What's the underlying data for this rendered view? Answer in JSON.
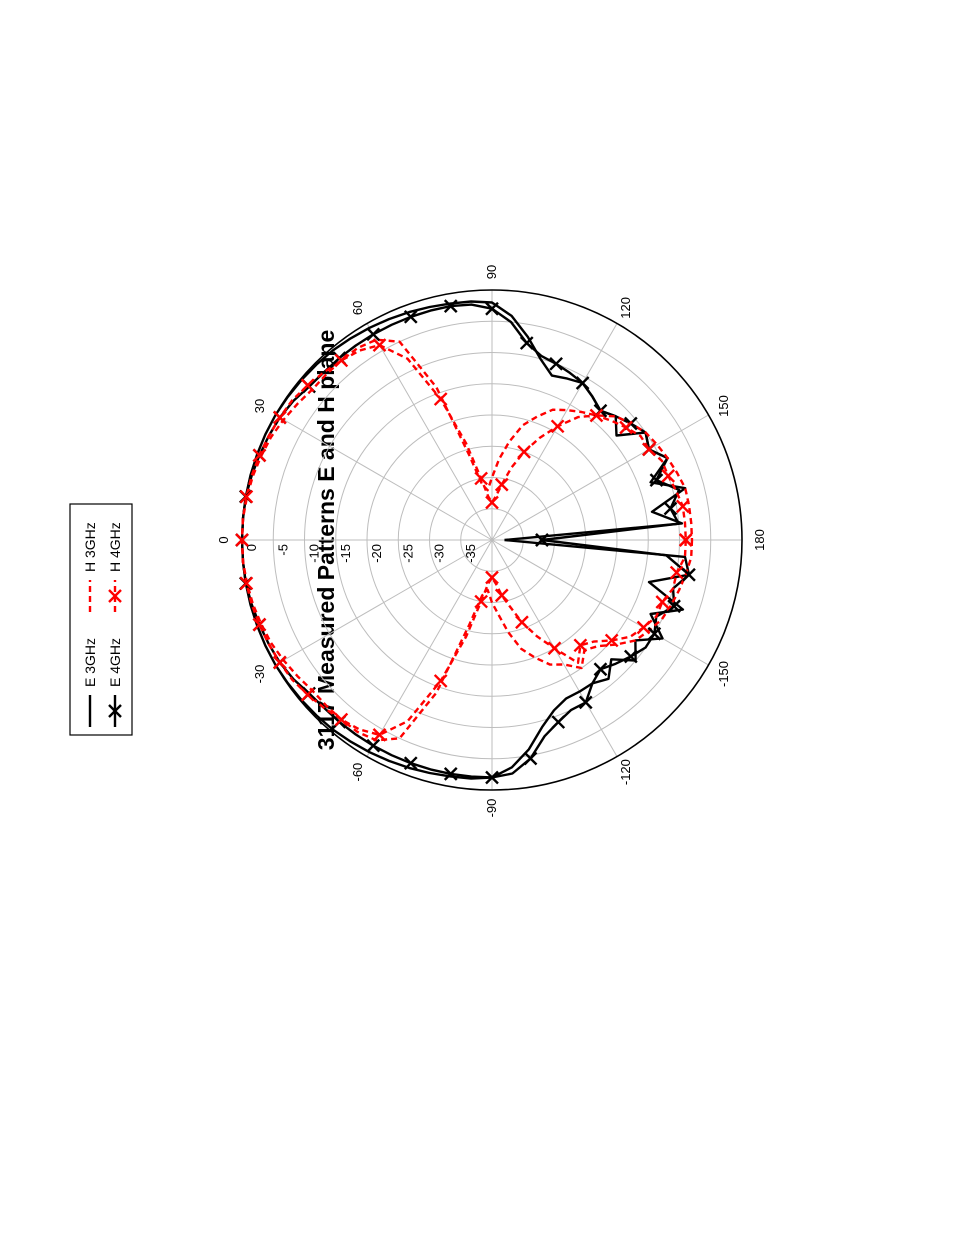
{
  "chart_data": {
    "type": "polar",
    "title": "3117 Measured Patterns E and H plane",
    "radial_unit": "dB",
    "radial_range": [
      -40,
      0
    ],
    "radial_ticks": [
      "0",
      "-5",
      "-10",
      "-15",
      "-20",
      "-25",
      "-30",
      "-35"
    ],
    "radial_tick_values": [
      0,
      -5,
      -10,
      -15,
      -20,
      -25,
      -30,
      -35
    ],
    "angle_ticks": [
      "-90",
      "-60",
      "-30",
      "0",
      "30",
      "60",
      "90",
      "120",
      "150",
      "180",
      "-150",
      "-120"
    ],
    "angle_tick_values": [
      -90,
      -60,
      -30,
      0,
      30,
      60,
      90,
      120,
      150,
      180,
      -150,
      -120
    ],
    "grid": true,
    "legend": "top-right",
    "colors": {
      "black": "#000000",
      "red": "#ff0000",
      "grid": "#bdbdbd"
    },
    "series": [
      {
        "name": "E 3GHz",
        "color": "#000000",
        "style": "solid",
        "marker": "none",
        "angles": [
          -180,
          -175,
          -170,
          -165,
          -160,
          -155,
          -150,
          -145,
          -140,
          -135,
          -130,
          -125,
          -120,
          -115,
          -110,
          -105,
          -100,
          -95,
          -90,
          -85,
          -80,
          -75,
          -70,
          -65,
          -60,
          -55,
          -50,
          -45,
          -40,
          -35,
          -30,
          -25,
          -20,
          -15,
          -10,
          -5,
          0,
          5,
          10,
          15,
          20,
          25,
          30,
          35,
          40,
          45,
          50,
          55,
          60,
          65,
          70,
          75,
          80,
          85,
          90,
          95,
          100,
          105,
          110,
          115,
          120,
          125,
          130,
          135,
          140,
          145,
          150,
          155,
          160,
          165,
          170,
          175,
          180
        ],
        "values": [
          -38,
          -9,
          -8,
          -14,
          -7.5,
          -12,
          -8.5,
          -12,
          -10,
          -13,
          -11,
          -12,
          -12,
          -12,
          -11,
          -9,
          -6,
          -3.5,
          -2,
          -1.7,
          -1.6,
          -1.4,
          -1.2,
          -1,
          -0.8,
          -0.6,
          -0.4,
          -0.3,
          -0.2,
          -0.1,
          0,
          0,
          0,
          0,
          0,
          0,
          0,
          0,
          0,
          0,
          0,
          0,
          0,
          -0.1,
          -0.2,
          -0.3,
          -0.4,
          -0.6,
          -0.8,
          -1,
          -1.2,
          -1.4,
          -1.6,
          -1.7,
          -2,
          -4,
          -7,
          -10,
          -12,
          -11.5,
          -11,
          -12,
          -13,
          -12,
          -14,
          -10,
          -11,
          -9,
          -13,
          -8,
          -14,
          -9.5,
          -38
        ]
      },
      {
        "name": "E 4GHz",
        "color": "#000000",
        "style": "solid",
        "marker": "x",
        "angles": [
          -180,
          -175,
          -170,
          -165,
          -160,
          -155,
          -150,
          -145,
          -140,
          -135,
          -130,
          -125,
          -120,
          -115,
          -110,
          -105,
          -100,
          -95,
          -90,
          -85,
          -80,
          -75,
          -70,
          -65,
          -60,
          -55,
          -50,
          -45,
          -40,
          -35,
          -30,
          -25,
          -20,
          -15,
          -10,
          -5,
          0,
          5,
          10,
          15,
          20,
          25,
          30,
          35,
          40,
          45,
          50,
          55,
          60,
          65,
          70,
          75,
          80,
          85,
          90,
          95,
          100,
          105,
          110,
          115,
          120,
          125,
          130,
          135,
          140,
          145,
          150,
          155,
          160,
          165,
          170,
          175,
          180
        ],
        "values": [
          -32,
          -12,
          -8,
          -10,
          -9,
          -11,
          -10,
          -10,
          -11,
          -12,
          -13,
          -12,
          -10,
          -10,
          -9,
          -7.5,
          -4.5,
          -2.5,
          -2,
          -2,
          -2,
          -2,
          -2,
          -2,
          -2,
          -2,
          -2,
          -2,
          -1.8,
          -1.2,
          -0.8,
          -0.6,
          -0.4,
          -0.2,
          0,
          0,
          0,
          0,
          0,
          -0.2,
          -0.4,
          -0.6,
          -0.8,
          -1.2,
          -1.8,
          -2,
          -2,
          -2,
          -2,
          -2,
          -2,
          -2,
          -2,
          -2.2,
          -3,
          -5,
          -8,
          -9.5,
          -10,
          -10.5,
          -11,
          -12,
          -13,
          -12,
          -11,
          -10,
          -11,
          -9,
          -12,
          -9,
          -11,
          -10,
          -32
        ]
      },
      {
        "name": "H 3GHz",
        "color": "#ff0000",
        "style": "dashed",
        "marker": "none",
        "angles": [
          -180,
          -175,
          -170,
          -165,
          -160,
          -155,
          -150,
          -145,
          -140,
          -135,
          -130,
          -125,
          -120,
          -115,
          -110,
          -105,
          -100,
          -95,
          -90,
          -85,
          -80,
          -75,
          -70,
          -65,
          -60,
          -55,
          -50,
          -45,
          -40,
          -35,
          -30,
          -25,
          -20,
          -15,
          -10,
          -5,
          0,
          5,
          10,
          15,
          20,
          25,
          30,
          35,
          40,
          45,
          50,
          55,
          60,
          65,
          70,
          75,
          80,
          85,
          90,
          95,
          100,
          105,
          110,
          115,
          120,
          125,
          130,
          135,
          140,
          145,
          150,
          155,
          160,
          165,
          170,
          175,
          180
        ],
        "values": [
          -8,
          -8,
          -8.5,
          -9,
          -9.5,
          -10,
          -11,
          -12,
          -14,
          -16,
          -17,
          -15,
          -17,
          -18,
          -20,
          -22,
          -25,
          -28,
          -30,
          -32,
          -31,
          -26,
          -14,
          -5,
          -3,
          -2.5,
          -2.5,
          -2.5,
          -2.5,
          -2,
          -1.5,
          -1,
          -0.7,
          -0.4,
          -0.2,
          0,
          0,
          0,
          -0.2,
          -0.4,
          -0.7,
          -1,
          -1.5,
          -2,
          -2.5,
          -2.5,
          -2.5,
          -2.5,
          -3,
          -5,
          -14,
          -26,
          -31,
          -32,
          -30,
          -27,
          -24,
          -21,
          -19,
          -17,
          -16,
          -15,
          -14,
          -12,
          -11,
          -10,
          -9.5,
          -9,
          -8.5,
          -8,
          -8,
          -8,
          -8
        ]
      },
      {
        "name": "H 4GHz",
        "color": "#ff0000",
        "style": "dashed",
        "marker": "x",
        "angles": [
          -180,
          -175,
          -170,
          -165,
          -160,
          -155,
          -150,
          -145,
          -140,
          -135,
          -130,
          -125,
          -120,
          -115,
          -110,
          -105,
          -100,
          -95,
          -90,
          -85,
          -80,
          -75,
          -70,
          -65,
          -60,
          -55,
          -50,
          -45,
          -40,
          -35,
          -30,
          -25,
          -20,
          -15,
          -10,
          -5,
          0,
          5,
          10,
          15,
          20,
          25,
          30,
          35,
          40,
          45,
          50,
          55,
          60,
          65,
          70,
          75,
          80,
          85,
          90,
          95,
          100,
          105,
          110,
          115,
          120,
          125,
          130,
          135,
          140,
          145,
          150,
          155,
          160,
          165,
          170,
          175,
          180
        ],
        "values": [
          -9,
          -9,
          -10,
          -10,
          -11,
          -11,
          -12,
          -13,
          -15,
          -17,
          -18,
          -16,
          -20,
          -23,
          -26,
          -29,
          -31,
          -33,
          -34,
          -33,
          -30,
          -24,
          -16,
          -8,
          -4,
          -3,
          -2.5,
          -2,
          -1.5,
          -1,
          -0.8,
          -0.6,
          -0.4,
          -0.2,
          -0.1,
          0,
          0,
          0,
          -0.1,
          -0.2,
          -0.4,
          -0.6,
          -0.8,
          -1,
          -1.5,
          -2,
          -2.5,
          -3,
          -4,
          -8,
          -16,
          -24,
          -30,
          -33,
          -34,
          -33,
          -31,
          -28,
          -25,
          -22,
          -19,
          -16,
          -14,
          -13,
          -12,
          -11,
          -11,
          -10,
          -10,
          -9.5,
          -9,
          -9,
          -9
        ]
      }
    ]
  }
}
